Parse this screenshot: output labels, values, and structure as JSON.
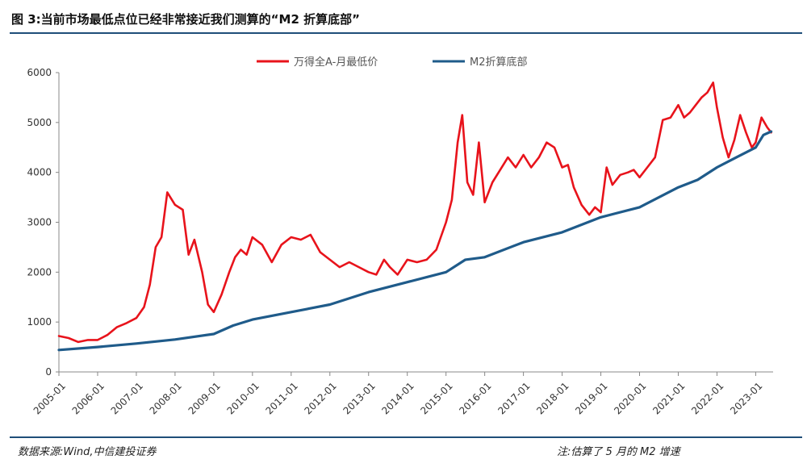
{
  "header": {
    "title": "图 3:当前市场最低点位已经非常接近我们测算的“M2 折算底部”"
  },
  "footer": {
    "source": "数据来源:Wind,中信建投证券",
    "note": "注:估算了 5 月的 M2 增速"
  },
  "colors": {
    "accent_rule": "#1f4e79",
    "series_a": "#e8131b",
    "series_b": "#1f5b8a"
  },
  "chart_data": {
    "type": "line",
    "title": "",
    "xlabel": "",
    "ylabel": "",
    "ylim": [
      0,
      6000
    ],
    "yticks": [
      "0",
      "1000",
      "2000",
      "3000",
      "4000",
      "5000",
      "6000"
    ],
    "xticks": [
      "2005-01",
      "2006-01",
      "2007-01",
      "2008-01",
      "2009-01",
      "2010-01",
      "2011-01",
      "2012-01",
      "2013-01",
      "2014-01",
      "2015-01",
      "2016-01",
      "2017-01",
      "2018-01",
      "2019-01",
      "2020-01",
      "2021-01",
      "2022-01",
      "2023-01"
    ],
    "grid": false,
    "legend": "top-center",
    "series": [
      {
        "name": "万得全A-月最低价",
        "color": "#e8131b",
        "x": [
          2005.0,
          2005.25,
          2005.5,
          2005.75,
          2006.0,
          2006.25,
          2006.5,
          2006.75,
          2007.0,
          2007.2,
          2007.35,
          2007.5,
          2007.65,
          2007.8,
          2008.0,
          2008.2,
          2008.35,
          2008.5,
          2008.7,
          2008.85,
          2009.0,
          2009.2,
          2009.4,
          2009.55,
          2009.7,
          2009.85,
          2010.0,
          2010.25,
          2010.5,
          2010.75,
          2011.0,
          2011.25,
          2011.5,
          2011.75,
          2012.0,
          2012.25,
          2012.5,
          2012.75,
          2013.0,
          2013.2,
          2013.4,
          2013.55,
          2013.75,
          2014.0,
          2014.25,
          2014.5,
          2014.75,
          2015.0,
          2015.15,
          2015.3,
          2015.42,
          2015.55,
          2015.7,
          2015.85,
          2016.0,
          2016.2,
          2016.4,
          2016.6,
          2016.8,
          2017.0,
          2017.2,
          2017.4,
          2017.6,
          2017.8,
          2018.0,
          2018.15,
          2018.3,
          2018.5,
          2018.7,
          2018.85,
          2019.0,
          2019.15,
          2019.3,
          2019.5,
          2019.7,
          2019.85,
          2020.0,
          2020.2,
          2020.4,
          2020.6,
          2020.8,
          2021.0,
          2021.15,
          2021.3,
          2021.45,
          2021.6,
          2021.75,
          2021.9,
          2022.0,
          2022.15,
          2022.3,
          2022.45,
          2022.6,
          2022.75,
          2022.9,
          2023.0,
          2023.15,
          2023.3,
          2023.4
        ],
        "y": [
          720,
          680,
          600,
          640,
          640,
          740,
          900,
          980,
          1080,
          1300,
          1750,
          2500,
          2700,
          3600,
          3350,
          3250,
          2350,
          2650,
          2000,
          1350,
          1200,
          1550,
          2000,
          2300,
          2450,
          2350,
          2700,
          2550,
          2200,
          2550,
          2700,
          2650,
          2750,
          2400,
          2250,
          2100,
          2200,
          2100,
          2000,
          1950,
          2250,
          2100,
          1950,
          2250,
          2200,
          2250,
          2450,
          3000,
          3450,
          4600,
          5150,
          3800,
          3550,
          4600,
          3400,
          3800,
          4050,
          4300,
          4100,
          4350,
          4100,
          4300,
          4600,
          4500,
          4100,
          4150,
          3700,
          3350,
          3150,
          3300,
          3200,
          4100,
          3750,
          3950,
          4000,
          4050,
          3900,
          4100,
          4300,
          5050,
          5100,
          5350,
          5100,
          5200,
          5350,
          5500,
          5600,
          5800,
          5300,
          4700,
          4300,
          4650,
          5150,
          4800,
          4500,
          4600,
          5100,
          4900,
          4800
        ]
      },
      {
        "name": "M2折算底部",
        "color": "#1f5b8a",
        "x": [
          2005.0,
          2006.0,
          2007.0,
          2008.0,
          2009.0,
          2009.5,
          2010.0,
          2011.0,
          2012.0,
          2013.0,
          2014.0,
          2015.0,
          2015.5,
          2016.0,
          2017.0,
          2018.0,
          2019.0,
          2020.0,
          2021.0,
          2021.5,
          2022.0,
          2022.5,
          2023.0,
          2023.2,
          2023.4
        ],
        "y": [
          440,
          500,
          570,
          650,
          760,
          930,
          1050,
          1200,
          1350,
          1600,
          1800,
          2000,
          2250,
          2300,
          2600,
          2800,
          3100,
          3300,
          3700,
          3850,
          4100,
          4300,
          4500,
          4750,
          4820
        ]
      }
    ]
  }
}
